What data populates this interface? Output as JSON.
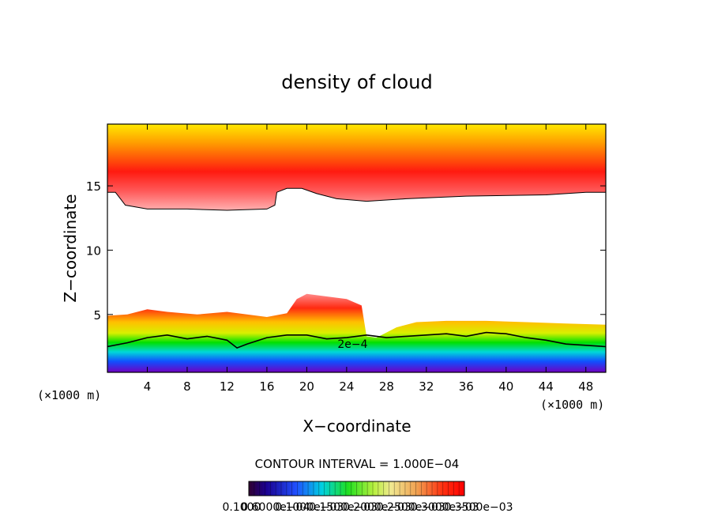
{
  "chart_data": {
    "type": "heatmap",
    "title": "density of cloud",
    "xlabel": "X−coordinate",
    "ylabel": "Z−coordinate",
    "x_unit_left": "(×1000 m)",
    "x_unit_right": "(×1000 m)",
    "xlim": [
      0,
      50
    ],
    "ylim": [
      0.5,
      19.8
    ],
    "x_ticks": [
      4,
      8,
      12,
      16,
      20,
      24,
      28,
      32,
      36,
      40,
      44,
      48
    ],
    "y_ticks": [
      5,
      10,
      15
    ],
    "contour_interval_text": "CONTOUR INTERVAL = 1.000E−04",
    "contour_label": "2e−4",
    "contour_label_pos": [
      24.6,
      2.7
    ],
    "colorbar_labels": [
      "0.1000",
      "0.6000e−04",
      "0.1000e−03",
      "0.1500e−03",
      "0.2000e−03",
      "0.2500e−03",
      "0.3000e−03",
      "0.3500e−03"
    ],
    "upper_layer_bottom": [
      [
        0,
        14.5
      ],
      [
        0.8,
        14.5
      ],
      [
        1.8,
        13.5
      ],
      [
        4,
        13.2
      ],
      [
        8,
        13.2
      ],
      [
        12,
        13.1
      ],
      [
        16,
        13.2
      ],
      [
        16.8,
        13.5
      ],
      [
        17,
        14.5
      ],
      [
        18,
        14.8
      ],
      [
        19.5,
        14.8
      ],
      [
        21,
        14.4
      ],
      [
        23,
        14.0
      ],
      [
        26,
        13.8
      ],
      [
        30,
        14.0
      ],
      [
        36,
        14.2
      ],
      [
        44,
        14.3
      ],
      [
        48,
        14.5
      ],
      [
        50,
        14.5
      ]
    ],
    "upper_layer_peak_z": 16.2,
    "lower_layer_top": [
      [
        0,
        4.9
      ],
      [
        2,
        5.0
      ],
      [
        4,
        5.4
      ],
      [
        6,
        5.2
      ],
      [
        9,
        5.0
      ],
      [
        12,
        5.2
      ],
      [
        14,
        5.0
      ],
      [
        16,
        4.8
      ],
      [
        18,
        5.1
      ],
      [
        19,
        6.2
      ],
      [
        20,
        6.6
      ],
      [
        22,
        6.4
      ],
      [
        24,
        6.2
      ],
      [
        25.5,
        5.7
      ],
      [
        26,
        3.3
      ],
      [
        27,
        3.2
      ],
      [
        29,
        4.0
      ],
      [
        31,
        4.4
      ],
      [
        34,
        4.5
      ],
      [
        38,
        4.5
      ],
      [
        42,
        4.4
      ],
      [
        46,
        4.3
      ],
      [
        50,
        4.2
      ]
    ],
    "contour_2e4": [
      [
        0,
        2.5
      ],
      [
        2,
        2.8
      ],
      [
        4,
        3.2
      ],
      [
        6,
        3.4
      ],
      [
        8,
        3.1
      ],
      [
        10,
        3.3
      ],
      [
        12,
        3.0
      ],
      [
        13,
        2.4
      ],
      [
        14,
        2.7
      ],
      [
        16,
        3.2
      ],
      [
        18,
        3.4
      ],
      [
        20,
        3.4
      ],
      [
        22,
        3.1
      ],
      [
        24,
        3.2
      ],
      [
        26,
        3.4
      ],
      [
        28,
        3.2
      ],
      [
        30,
        3.3
      ],
      [
        32,
        3.4
      ],
      [
        34,
        3.5
      ],
      [
        36,
        3.3
      ],
      [
        38,
        3.6
      ],
      [
        40,
        3.5
      ],
      [
        42,
        3.2
      ],
      [
        44,
        3.0
      ],
      [
        46,
        2.7
      ],
      [
        48,
        2.6
      ],
      [
        50,
        2.5
      ]
    ],
    "grid": false,
    "legend": "bottom colorbar"
  }
}
